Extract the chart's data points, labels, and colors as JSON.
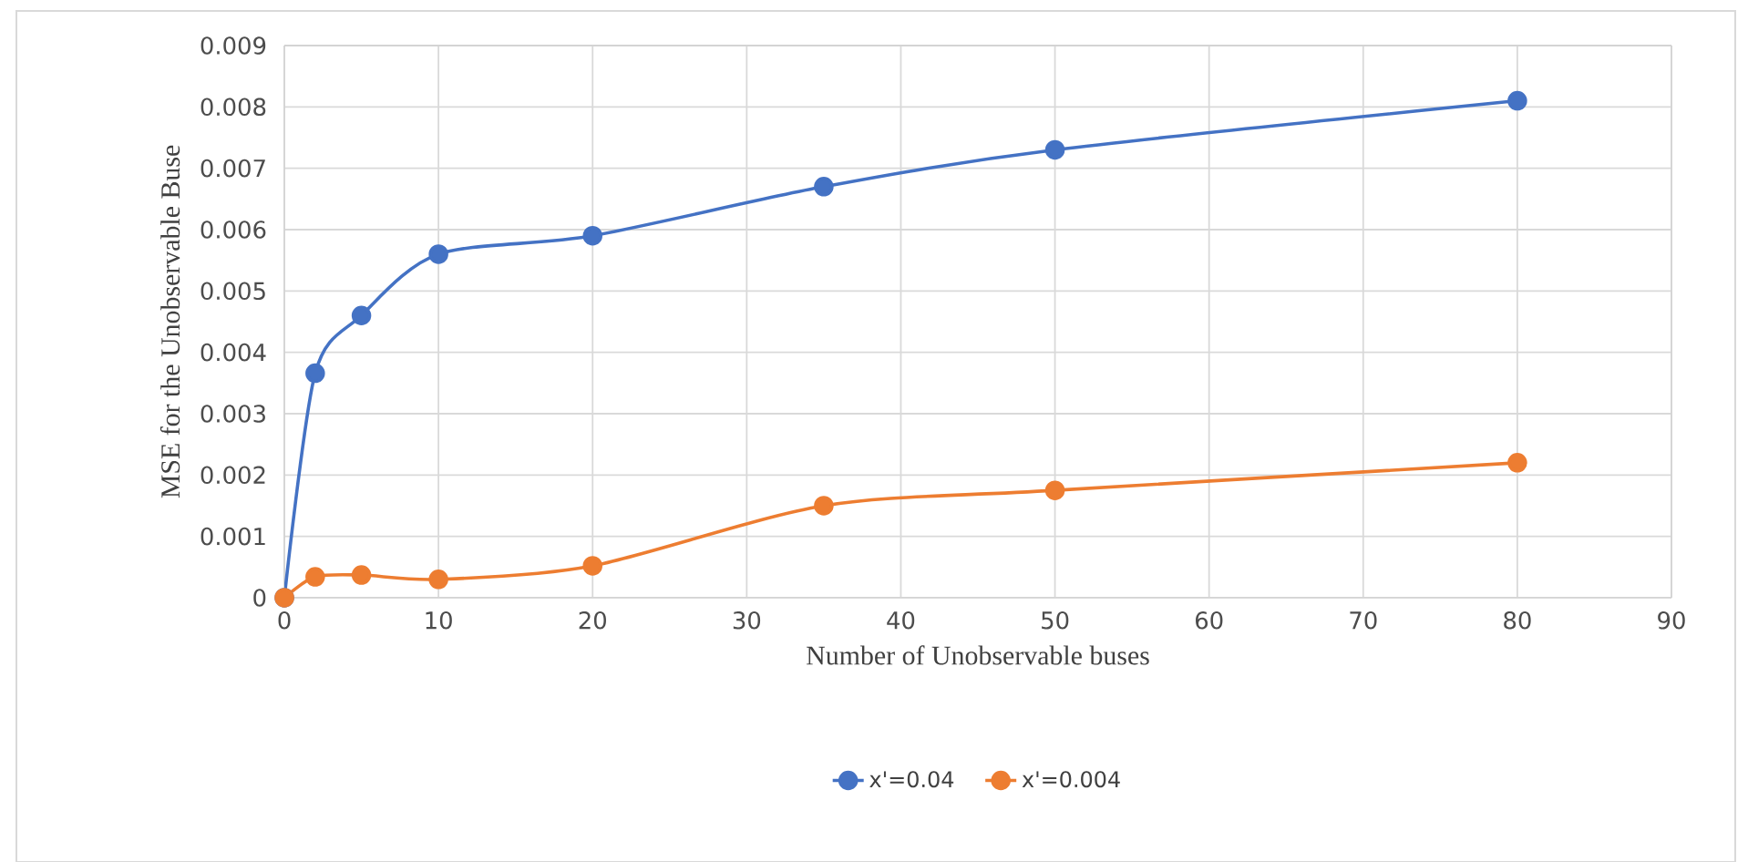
{
  "chart_data": {
    "type": "line",
    "xlabel": "Number of Unobservable buses",
    "ylabel": "MSE for the Unobservable Buse",
    "x": [
      0,
      2,
      5,
      10,
      20,
      35,
      50,
      80
    ],
    "series": [
      {
        "name": "x'=0.04",
        "color": "#4472c4",
        "values": [
          0,
          0.00366,
          0.0046,
          0.0056,
          0.0059,
          0.0067,
          0.0073,
          0.0081
        ]
      },
      {
        "name": "x'=0.004",
        "color": "#ed7d31",
        "values": [
          0,
          0.00034,
          0.00037,
          0.0003,
          0.00052,
          0.0015,
          0.00175,
          0.0022
        ]
      }
    ],
    "xlim": [
      0,
      90
    ],
    "xticks": [
      0,
      10,
      20,
      30,
      40,
      50,
      60,
      70,
      80,
      90
    ],
    "ylim": [
      0,
      0.009
    ],
    "yticks": [
      0,
      0.001,
      0.002,
      0.003,
      0.004,
      0.005,
      0.006,
      0.007,
      0.008,
      0.009
    ],
    "grid": true,
    "legend": "bottom",
    "marker": "circle",
    "line_style": "solid"
  }
}
